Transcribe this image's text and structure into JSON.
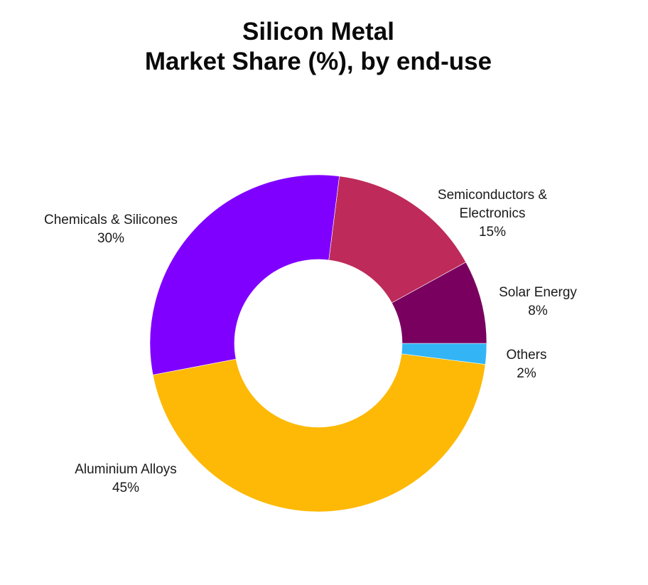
{
  "title": {
    "line1": "Silicon Metal",
    "line2": "Market Share (%), by end-use"
  },
  "chart_data": {
    "type": "pie",
    "variant": "donut",
    "title": "Silicon Metal Market Share (%), by end-use",
    "categories": [
      "Others",
      "Aluminium Alloys",
      "Chemicals & Silicones",
      "Semiconductors & Electronics",
      "Solar Energy"
    ],
    "values": [
      2,
      45,
      30,
      15,
      8
    ],
    "unit": "%",
    "colors": [
      "#33B5F5",
      "#FDB906",
      "#8000FF",
      "#BE2A5A",
      "#7A005F"
    ],
    "legend": "none (direct labels)",
    "start_angle_deg": 0,
    "direction": "clockwise",
    "hole_ratio": 0.5
  },
  "labels": [
    {
      "name": "Others",
      "lines": [
        "Others"
      ],
      "value": "2%"
    },
    {
      "name": "Aluminium Alloys",
      "lines": [
        "Aluminium Alloys"
      ],
      "value": "45%"
    },
    {
      "name": "Chemicals & Silicones",
      "lines": [
        "Chemicals & Silicones"
      ],
      "value": "30%"
    },
    {
      "name": "Semiconductors & Electronics",
      "lines": [
        "Semiconductors &",
        "Electronics"
      ],
      "value": "15%"
    },
    {
      "name": "Solar Energy",
      "lines": [
        "Solar Energy"
      ],
      "value": "8%"
    }
  ]
}
